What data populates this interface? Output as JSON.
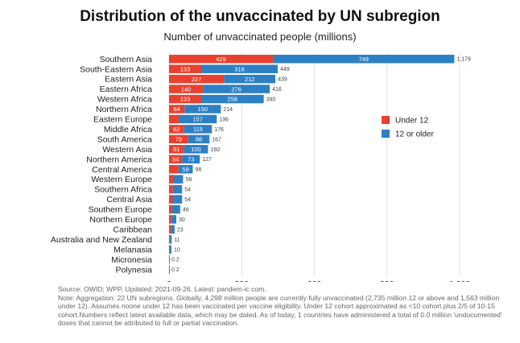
{
  "chart_data": {
    "type": "bar",
    "orientation": "horizontal",
    "stacked": true,
    "title": "Distribution of the unvaccinated by UN subregion",
    "subtitle": "Number of unvaccinated people (millions)",
    "categories": [
      "Southern Asia",
      "South-Eastern Asia",
      "Eastern Asia",
      "Eastern Africa",
      "Western Africa",
      "Northern Africa",
      "Eastern Europe",
      "Middle Africa",
      "South America",
      "Western Asia",
      "Northern America",
      "Central America",
      "Western Europe",
      "Southern Africa",
      "Central Asia",
      "Southern Europe",
      "Northern Europe",
      "Caribbean",
      "Australia and New Zealand",
      "Melanasia",
      "Micronesia",
      "Polynesia"
    ],
    "series": [
      {
        "name": "Under 12",
        "color": "#e8412f",
        "values": [
          429,
          133,
          227,
          140,
          133,
          64,
          40,
          62,
          79,
          61,
          54,
          39,
          20,
          16,
          15,
          13,
          9,
          9,
          4,
          4,
          0.1,
          0.1
        ],
        "labels": [
          "429",
          "133",
          "227",
          "140",
          "133",
          "64",
          "",
          "62",
          "79",
          "61",
          "54",
          "",
          "",
          "",
          "",
          "",
          "",
          "",
          "",
          "",
          "",
          ""
        ]
      },
      {
        "name": "12 or older",
        "color": "#2d80c4",
        "values": [
          749,
          316,
          212,
          276,
          258,
          150,
          157,
          115,
          88,
          100,
          73,
          59,
          38,
          38,
          39,
          33,
          21,
          14,
          7,
          6,
          0.1,
          0.1
        ],
        "labels": [
          "749",
          "316",
          "212",
          "276",
          "258",
          "150",
          "157",
          "115",
          "88",
          "100",
          "73",
          "59",
          "",
          "",
          "",
          "",
          "",
          "",
          "",
          "",
          "",
          ""
        ]
      }
    ],
    "totals": [
      "1,179",
      "449",
      "439",
      "416",
      "390",
      "214",
      "196",
      "176",
      "167",
      "160",
      "127",
      "98",
      "58",
      "54",
      "54",
      "46",
      "30",
      "23",
      "11",
      "10",
      "0.2",
      "0.2"
    ],
    "xlim": [
      0,
      1200
    ],
    "xticks": [
      0,
      300,
      600,
      900,
      1200
    ],
    "xtick_labels": [
      "0",
      "300",
      "600",
      "900",
      "1,200"
    ],
    "grid": true,
    "legend_position": "right"
  },
  "footnote": {
    "source": "Source: OWID; WPP. Updated: 2021-09-26. Latest: pandem-ic.com.",
    "note": "Note: Aggregation: 22 UN subregions. Globally, 4,298 million people are currently fully unvaccinated (2,735 million 12 or above and 1,563 million under 12). Assumes noone under 12 has been vaccinated per vaccine eligibility. Under 12 cohort approximated as <10 cohort plus 2/5 of 10-15 cohort.Numbers reflect latest available data, which may be dated. As of today, 1 countries have administered a total of 0.0 million 'undocumented' doses that cannot be attributed to full or partial vaccination."
  }
}
